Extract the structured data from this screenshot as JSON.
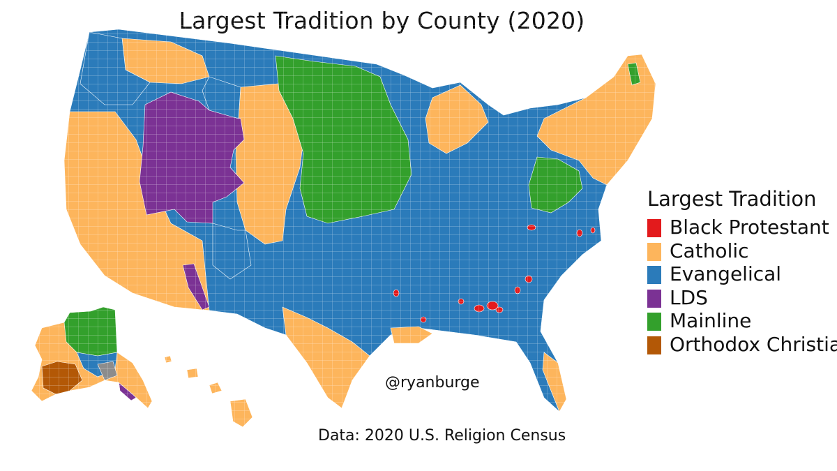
{
  "title": "Largest Tradition by County (2020)",
  "watermark": "@ryanburge",
  "source": "Data: 2020 U.S. Religion Census",
  "legend": {
    "title": "Largest Tradition",
    "items": [
      {
        "label": "Black Protestant",
        "color": "#e31a1c"
      },
      {
        "label": "Catholic",
        "color": "#fdb55c"
      },
      {
        "label": "Evangelical",
        "color": "#2b7bba"
      },
      {
        "label": "LDS",
        "color": "#7b3294"
      },
      {
        "label": "Mainline",
        "color": "#33a02c"
      },
      {
        "label": "Orthodox Christian",
        "color": "#b35806"
      }
    ]
  },
  "unclassified_color": "#8c8c8c"
}
